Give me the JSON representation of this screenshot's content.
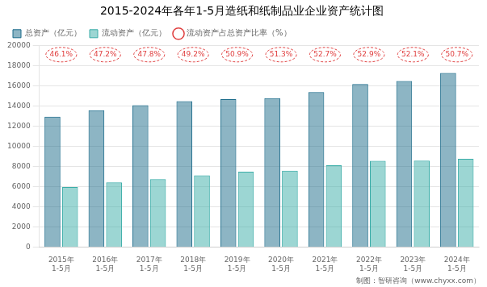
{
  "chart_data": {
    "type": "bar",
    "title": "2015-2024年各年1-5月造纸和纸制品业企业资产统计图",
    "categories": [
      "2015年\n1-5月",
      "2016年\n1-5月",
      "2017年\n1-5月",
      "2018年\n1-5月",
      "2019年\n1-5月",
      "2020年\n1-5月",
      "2021年\n1-5月",
      "2022年\n1-5月",
      "2023年\n1-5月",
      "2024年\n1-5月"
    ],
    "series": [
      {
        "name": "总资产（亿元）",
        "color": "#1B6B8A",
        "values": [
          12950,
          13600,
          14100,
          14500,
          14700,
          14800,
          15400,
          16200,
          16500,
          17300
        ]
      },
      {
        "name": "流动资产（亿元）",
        "color": "#3AADA8",
        "values": [
          5970,
          6420,
          6740,
          7130,
          7490,
          7590,
          8120,
          8560,
          8590,
          8770
        ]
      },
      {
        "name": "流动资产占总资产比率（%）",
        "type": "label",
        "color": "#E04040",
        "marker": "circle",
        "values": [
          46.1,
          47.2,
          47.8,
          49.2,
          50.9,
          51.3,
          52.7,
          52.9,
          52.1,
          50.7
        ],
        "value_labels": [
          "46.1%",
          "47.2%",
          "47.8%",
          "49.2%",
          "50.9%",
          "51.3%",
          "52.7%",
          "52.9%",
          "52.1%",
          "50.7%"
        ]
      }
    ],
    "ylim": [
      0,
      20000
    ],
    "yticks": [
      0,
      2000,
      4000,
      6000,
      8000,
      10000,
      12000,
      14000,
      16000,
      18000,
      20000
    ],
    "grid": true,
    "legend": "upper left",
    "annotations": [
      "制图：智研咨询（www.chyxx.com）"
    ]
  }
}
